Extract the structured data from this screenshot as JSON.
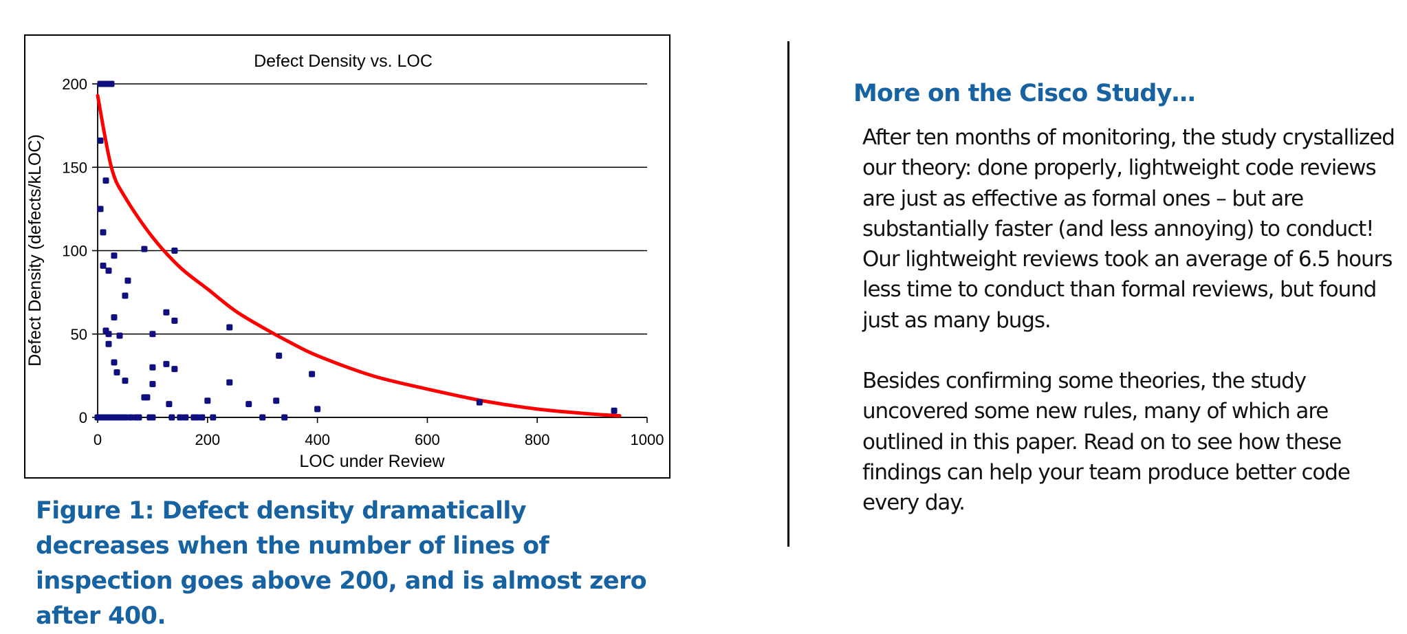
{
  "figure": {
    "caption": "Figure 1:  Defect density dramatically decreases when the number of lines of inspection goes above 200, and is almost zero after 400."
  },
  "sidebar": {
    "heading": "More on the Cisco Study…",
    "paragraphs": [
      "After ten months of monitoring, the study crystallized our theory: done properly, lightweight code reviews are just as effective as formal ones – but are substantially faster (and less annoying) to conduct! Our lightweight reviews took an average of 6.5 hours less time to conduct than formal reviews, but found just as many bugs.",
      "Besides confirming some theories, the study uncovered some new rules, many of which are outlined in this paper. Read on to see how these findings can help your team produce better code every day."
    ]
  },
  "colors": {
    "accent_blue": "#1762a0",
    "point_color": "#0f0f80",
    "trend_color": "#ff0000"
  },
  "chart_data": {
    "type": "scatter",
    "title": "Defect Density vs. LOC",
    "xlabel": "LOC under Review",
    "ylabel": "Defect Density (defects/kLOC)",
    "xlim": [
      0,
      1000
    ],
    "ylim": [
      0,
      200
    ],
    "x_ticks": [
      "0",
      "200",
      "400",
      "600",
      "800",
      "1000"
    ],
    "y_ticks": [
      "0",
      "50",
      "100",
      "150",
      "200"
    ],
    "grid": "horizontal",
    "points": [
      [
        5,
        200
      ],
      [
        10,
        200
      ],
      [
        15,
        200
      ],
      [
        20,
        200
      ],
      [
        25,
        200
      ],
      [
        5,
        166
      ],
      [
        5,
        125
      ],
      [
        10,
        111
      ],
      [
        15,
        142
      ],
      [
        10,
        91
      ],
      [
        20,
        88
      ],
      [
        30,
        97
      ],
      [
        85,
        101
      ],
      [
        140,
        100
      ],
      [
        55,
        82
      ],
      [
        50,
        73
      ],
      [
        125,
        63
      ],
      [
        140,
        58
      ],
      [
        30,
        60
      ],
      [
        15,
        52
      ],
      [
        20,
        50
      ],
      [
        40,
        49
      ],
      [
        100,
        50
      ],
      [
        20,
        44
      ],
      [
        30,
        33
      ],
      [
        35,
        27
      ],
      [
        50,
        22
      ],
      [
        100,
        30
      ],
      [
        125,
        32
      ],
      [
        140,
        29
      ],
      [
        240,
        21
      ],
      [
        100,
        20
      ],
      [
        85,
        12
      ],
      [
        90,
        12
      ],
      [
        130,
        8
      ],
      [
        200,
        10
      ],
      [
        275,
        8
      ],
      [
        325,
        10
      ],
      [
        330,
        37
      ],
      [
        240,
        54
      ],
      [
        390,
        26
      ],
      [
        400,
        5
      ],
      [
        695,
        9
      ],
      [
        940,
        4
      ],
      [
        0,
        0
      ],
      [
        5,
        0
      ],
      [
        10,
        0
      ],
      [
        15,
        0
      ],
      [
        20,
        0
      ],
      [
        25,
        0
      ],
      [
        30,
        0
      ],
      [
        35,
        0
      ],
      [
        40,
        0
      ],
      [
        45,
        0
      ],
      [
        50,
        0
      ],
      [
        60,
        0
      ],
      [
        70,
        0
      ],
      [
        75,
        0
      ],
      [
        95,
        0
      ],
      [
        100,
        0
      ],
      [
        135,
        0
      ],
      [
        150,
        0
      ],
      [
        160,
        0
      ],
      [
        175,
        0
      ],
      [
        180,
        0
      ],
      [
        190,
        0
      ],
      [
        210,
        0
      ],
      [
        300,
        0
      ],
      [
        340,
        0
      ]
    ],
    "trend_line": {
      "type": "fitted curve",
      "points": [
        [
          0,
          193
        ],
        [
          25,
          150
        ],
        [
          50,
          132
        ],
        [
          100,
          108
        ],
        [
          150,
          90
        ],
        [
          200,
          77
        ],
        [
          250,
          64
        ],
        [
          300,
          54
        ],
        [
          350,
          45
        ],
        [
          400,
          37
        ],
        [
          500,
          25
        ],
        [
          600,
          17
        ],
        [
          700,
          10
        ],
        [
          800,
          5
        ],
        [
          900,
          2
        ],
        [
          950,
          1
        ]
      ]
    }
  }
}
